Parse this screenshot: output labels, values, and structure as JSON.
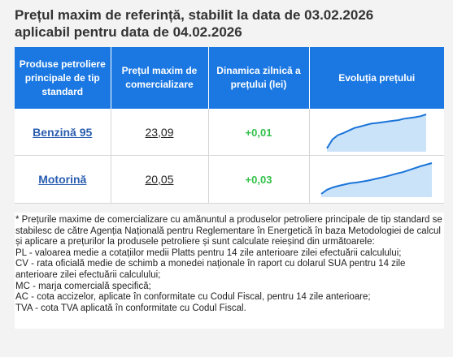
{
  "title": {
    "line1": "Prețul maxim de referință, stabilit la data de 03.02.2026",
    "line2": "aplicabil pentru data de 04.02.2026"
  },
  "table": {
    "headers": [
      "Produse petroliere principale de tip standard",
      "Prețul maxim de comercializare",
      "Dinamica zilnică a prețului (lei)",
      "Evoluția prețului"
    ],
    "rows": [
      {
        "fuel": "Benzină 95",
        "price": "23,09",
        "change": "+0,01",
        "trend": [
          0.05,
          0.3,
          0.42,
          0.48,
          0.55,
          0.62,
          0.66,
          0.7,
          0.74,
          0.76,
          0.78,
          0.8,
          0.82,
          0.84,
          0.88,
          0.9,
          0.92,
          0.95,
          1.0
        ]
      },
      {
        "fuel": "Motorină",
        "price": "20,05",
        "change": "+0,03",
        "trend": [
          0.05,
          0.18,
          0.25,
          0.3,
          0.34,
          0.38,
          0.4,
          0.43,
          0.46,
          0.5,
          0.54,
          0.58,
          0.63,
          0.68,
          0.72,
          0.78,
          0.84,
          0.9,
          0.95,
          1.0
        ]
      }
    ]
  },
  "colors": {
    "header_bg": "#1b78e2",
    "change_green": "#33c14a",
    "spark_line": "#1a74d9",
    "spark_fill": "#a8d0f5"
  },
  "notes": [
    "* Prețurile maxime de comercializare cu amănuntul a produselor petroliere principale de tip standard se stabilesc de către Agenția Națională pentru Reglementare în Energetică în baza Metodologiei de calcul și aplicare a prețurilor la produsele petroliere și sunt calculate reieșind din următoarele:",
    "PL - valoarea medie a cotațiilor medii Platts pentru 14 zile anterioare zilei efectuării calculului;",
    "CV - rata oficială medie de schimb a monedei naționale în raport cu dolarul SUA pentru 14 zile anterioare zilei efectuării calculului;",
    "MC - marja comercială specifică;",
    "AC - cota accizelor, aplicate în conformitate cu Codul Fiscal, pentru 14 zile anterioare;",
    "TVA - cota TVA aplicată în conformitate cu Codul Fiscal."
  ]
}
